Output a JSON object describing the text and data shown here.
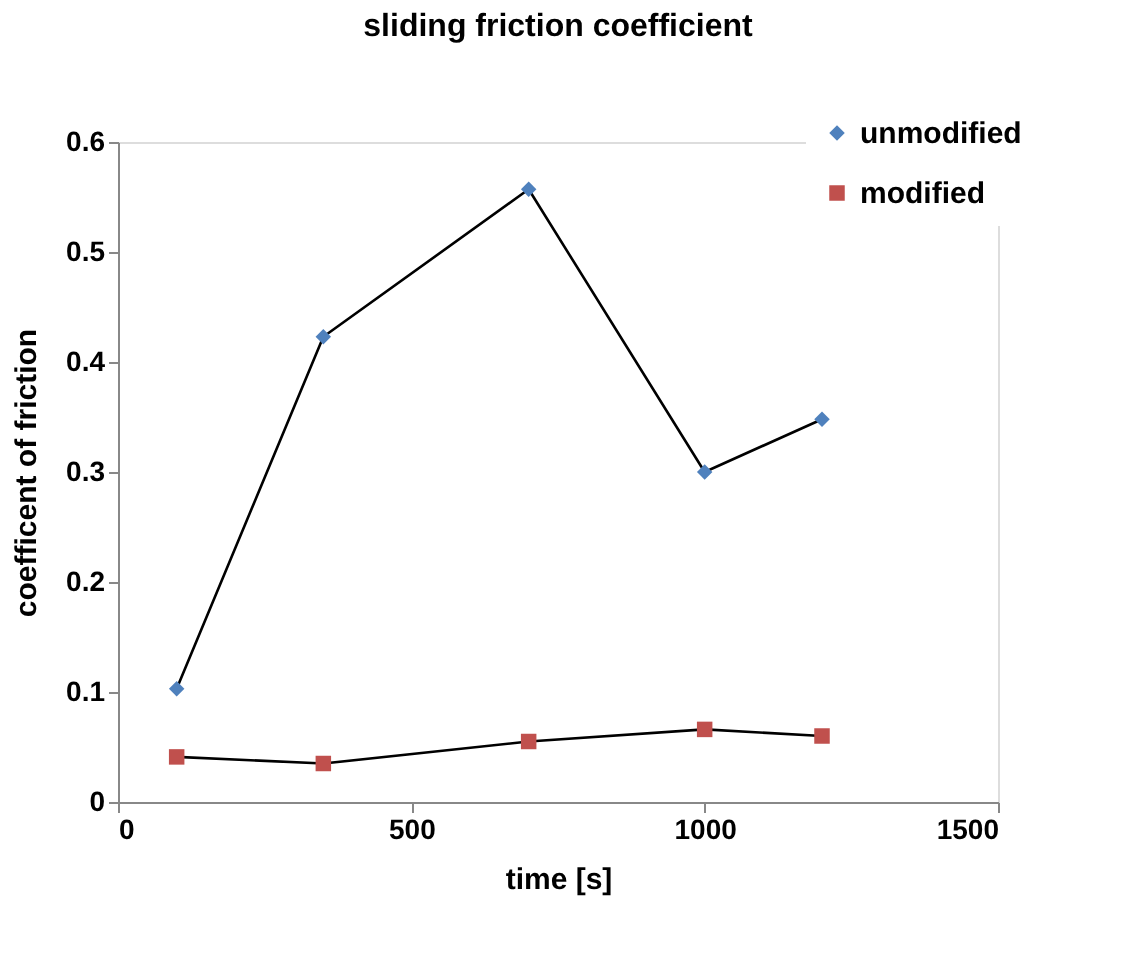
{
  "chart_data": {
    "type": "line",
    "title": "sliding friction coefficient",
    "xlabel": "time [s]",
    "ylabel": "coefficent of friction",
    "x": [
      100,
      350,
      700,
      1000,
      1200
    ],
    "series": [
      {
        "name": "unmodified",
        "color": "#4f81bd",
        "marker": "diamond",
        "values": [
          0.103,
          0.423,
          0.557,
          0.3,
          0.348
        ]
      },
      {
        "name": "modified",
        "color": "#c0504d",
        "marker": "square",
        "values": [
          0.041,
          0.035,
          0.055,
          0.066,
          0.06
        ]
      }
    ],
    "xlim": [
      0,
      1500
    ],
    "xticks": [
      0,
      500,
      1000,
      1500
    ],
    "ylim": [
      0,
      0.6
    ],
    "yticks": [
      0,
      0.1,
      0.2,
      0.3,
      0.4,
      0.5,
      0.6
    ],
    "grid": false,
    "legend": "top right",
    "line_style": "solid"
  }
}
